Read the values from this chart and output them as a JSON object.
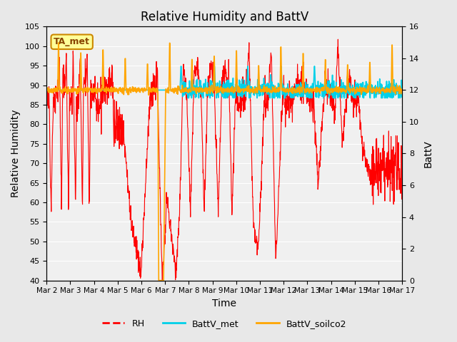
{
  "title": "Relative Humidity and BattV",
  "ylabel_left": "Relative Humidity",
  "ylabel_right": "BattV",
  "xlabel": "Time",
  "ylim_left": [
    40,
    105
  ],
  "ylim_right": [
    0,
    16
  ],
  "yticks_left": [
    40,
    45,
    50,
    55,
    60,
    65,
    70,
    75,
    80,
    85,
    90,
    95,
    100,
    105
  ],
  "yticks_right": [
    0,
    2,
    4,
    6,
    8,
    10,
    12,
    14,
    16
  ],
  "xtick_labels": [
    "Mar 2",
    "Mar 3",
    "Mar 4",
    "Mar 5",
    "Mar 6",
    "Mar 7",
    "Mar 8",
    "Mar 9",
    "Mar 10",
    "Mar 11",
    "Mar 12",
    "Mar 13",
    "Mar 14",
    "Mar 15",
    "Mar 16",
    "Mar 17"
  ],
  "color_RH": "#ff0000",
  "color_BattV_met": "#00d0e8",
  "color_BattV_soilco2": "#ffa500",
  "background_color": "#e8e8e8",
  "plot_bg_color": "#f0f0f0",
  "annotation_text": "TA_met",
  "annotation_bg": "#ffff99",
  "annotation_border": "#cc8800"
}
